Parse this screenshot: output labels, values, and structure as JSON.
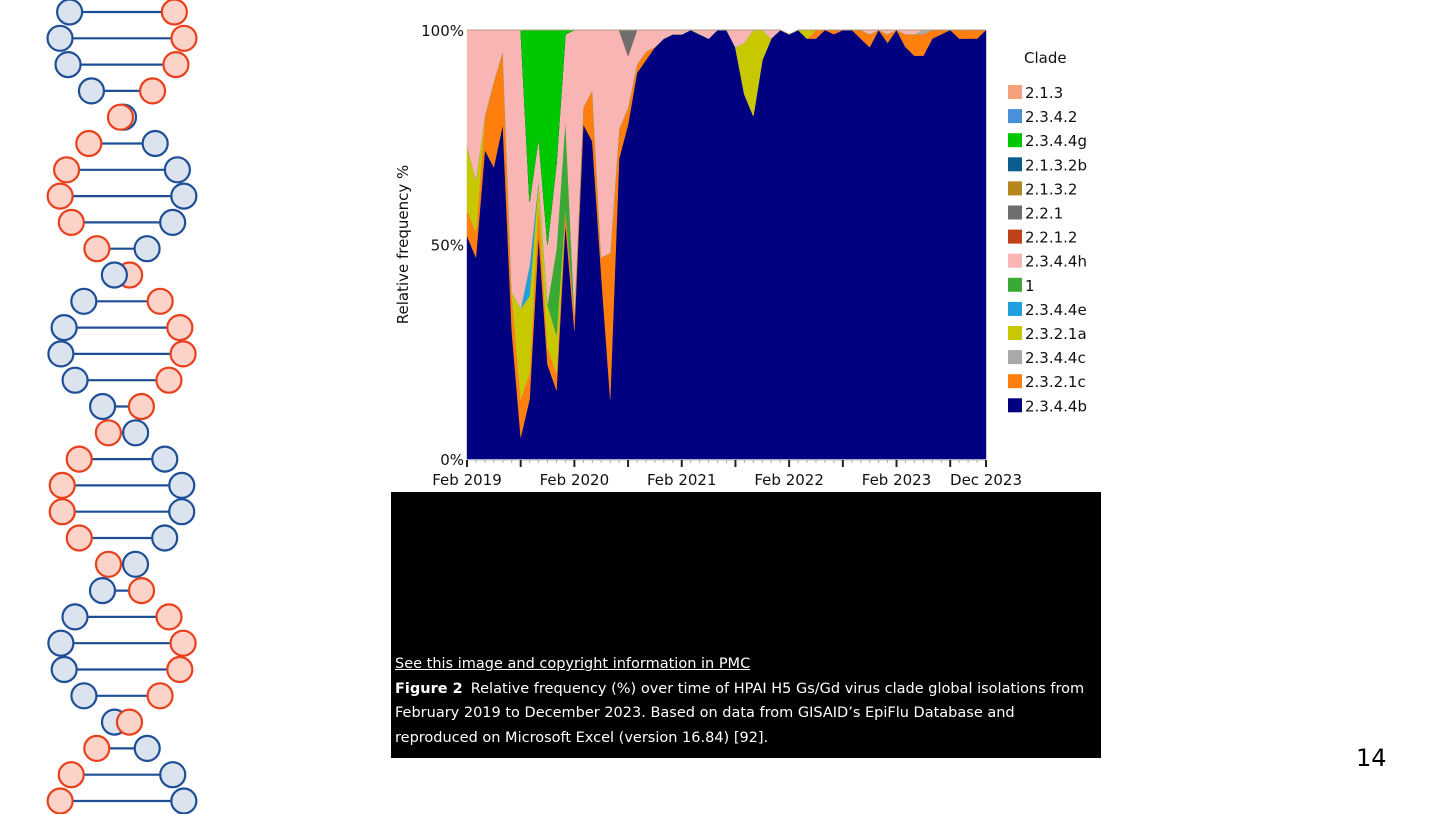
{
  "page_number": "14",
  "caption": {
    "link_text": "See this image and copyright information in PMC",
    "figure_label": "Figure 2",
    "text": "Relative frequency (%) over time of HPAI H5 Gs/Gd virus clade global isolations from February 2019 to December 2023. Based on data from GISAID’s EpiFlu Database and reproduced on Microsoft Excel (version 16.84) [92]."
  },
  "decoration": {
    "icon": "dna-helix-icon",
    "colors": {
      "blue_stroke": "#1e4f96",
      "blue_fill": "#dbe3ee",
      "red_stroke": "#e8401c",
      "red_fill": "#fbd3c8"
    }
  },
  "chart_data": {
    "type": "area",
    "stacked": "percent",
    "title": "",
    "xlabel": "",
    "ylabel": "Relative frequency %",
    "ylim": [
      0,
      100
    ],
    "y_ticks": [
      "0%",
      "50%",
      "100%"
    ],
    "x_ticks": [
      "Feb 2019",
      "Feb 2020",
      "Feb 2021",
      "Feb 2022",
      "Feb 2023",
      "Dec 2023"
    ],
    "x": [
      "2019-02",
      "2019-03",
      "2019-04",
      "2019-05",
      "2019-06",
      "2019-07",
      "2019-08",
      "2019-09",
      "2019-10",
      "2019-11",
      "2019-12",
      "2020-01",
      "2020-02",
      "2020-03",
      "2020-04",
      "2020-05",
      "2020-06",
      "2020-07",
      "2020-08",
      "2020-09",
      "2020-10",
      "2020-11",
      "2020-12",
      "2021-01",
      "2021-02",
      "2021-03",
      "2021-04",
      "2021-05",
      "2021-06",
      "2021-07",
      "2021-08",
      "2021-09",
      "2021-10",
      "2021-11",
      "2021-12",
      "2022-01",
      "2022-02",
      "2022-03",
      "2022-04",
      "2022-05",
      "2022-06",
      "2022-07",
      "2022-08",
      "2022-09",
      "2022-10",
      "2022-11",
      "2022-12",
      "2023-01",
      "2023-02",
      "2023-03",
      "2023-04",
      "2023-05",
      "2023-06",
      "2023-07",
      "2023-08",
      "2023-09",
      "2023-10",
      "2023-11",
      "2023-12"
    ],
    "legend_title": "Clade",
    "legend_position": "right",
    "series": [
      {
        "name": "2.3.4.4b",
        "color": "#000080",
        "values": [
          52,
          47,
          72,
          68,
          78,
          30,
          5,
          14,
          52,
          22,
          16,
          55,
          30,
          78,
          74,
          43,
          14,
          70,
          78,
          90,
          93,
          96,
          98,
          99,
          99,
          100,
          99,
          98,
          100,
          100,
          96,
          85,
          80,
          93,
          98,
          100,
          99,
          100,
          98,
          98,
          100,
          99,
          100,
          100,
          98,
          96,
          100,
          97,
          100,
          96,
          94,
          94,
          98,
          99,
          100,
          98,
          98,
          98,
          100
        ]
      },
      {
        "name": "2.3.2.1c",
        "color": "#ff7f0e",
        "values": [
          6,
          6,
          8,
          20,
          17,
          9,
          9,
          6,
          8,
          4,
          4,
          4,
          4,
          4,
          12,
          4,
          34,
          7,
          4,
          2,
          2,
          0,
          0,
          0,
          0,
          0,
          0,
          0,
          0,
          0,
          0,
          0,
          0,
          0,
          0,
          0,
          0,
          0,
          0,
          3,
          0,
          1,
          0,
          0,
          2,
          3,
          0,
          2,
          0,
          3,
          5,
          5,
          2,
          1,
          0,
          2,
          2,
          2,
          0
        ]
      },
      {
        "name": "2.3.4.4c",
        "color": "#a9a9a9",
        "values": [
          0,
          0,
          0,
          0,
          0,
          0,
          0,
          0,
          0,
          0,
          0,
          0,
          0,
          0,
          0,
          0,
          0,
          0,
          0,
          0,
          0,
          0,
          0,
          0,
          0,
          0,
          0,
          0,
          0,
          0,
          0,
          0,
          0,
          0,
          0,
          0,
          0,
          0,
          0,
          0,
          0,
          0,
          0,
          0,
          0,
          0,
          0,
          0,
          0,
          0,
          0,
          1,
          0,
          0,
          0,
          0,
          0,
          0,
          0
        ]
      },
      {
        "name": "2.3.2.1a",
        "color": "#c8c800",
        "values": [
          15,
          12,
          0,
          0,
          0,
          0,
          21,
          18,
          5,
          10,
          9,
          0,
          0,
          0,
          0,
          0,
          0,
          0,
          0,
          0,
          0,
          0,
          0,
          0,
          0,
          0,
          0,
          0,
          0,
          0,
          0,
          12,
          20,
          7,
          0,
          0,
          0,
          0,
          2,
          0,
          0,
          0,
          0,
          0,
          0,
          0,
          0,
          0,
          0,
          0,
          0,
          0,
          0,
          0,
          0,
          0,
          0,
          0,
          0
        ]
      },
      {
        "name": "2.3.4.4e",
        "color": "#1f9fdf",
        "values": [
          0,
          0,
          0,
          0,
          0,
          0,
          0,
          7,
          0,
          0,
          0,
          0,
          0,
          0,
          0,
          0,
          0,
          0,
          0,
          0,
          0,
          0,
          0,
          0,
          0,
          0,
          0,
          0,
          0,
          0,
          0,
          0,
          0,
          0,
          0,
          0,
          0,
          0,
          0,
          0,
          0,
          0,
          0,
          0,
          0,
          0,
          0,
          0,
          0,
          0,
          0,
          0,
          0,
          0,
          0,
          0,
          0,
          0,
          0
        ]
      },
      {
        "name": "1",
        "color": "#3aaa35",
        "values": [
          0,
          0,
          0,
          0,
          0,
          0,
          0,
          0,
          0,
          0,
          20,
          20,
          0,
          0,
          0,
          0,
          0,
          0,
          0,
          0,
          0,
          0,
          0,
          0,
          0,
          0,
          0,
          0,
          0,
          0,
          0,
          0,
          0,
          0,
          0,
          0,
          0,
          0,
          0,
          0,
          0,
          0,
          0,
          0,
          0,
          0,
          0,
          0,
          0,
          0,
          0,
          0,
          0,
          0,
          0,
          0,
          0,
          0,
          0
        ]
      },
      {
        "name": "2.3.4.4h",
        "color": "#f9b4b4",
        "values": [
          27,
          35,
          20,
          12,
          5,
          61,
          65,
          15,
          10,
          14,
          20,
          20,
          66,
          18,
          14,
          53,
          52,
          23,
          12,
          8,
          5,
          4,
          2,
          1,
          1,
          0,
          1,
          2,
          0,
          0,
          4,
          3,
          0,
          0,
          2,
          0,
          0,
          0,
          0,
          0,
          0,
          0,
          0,
          0,
          0,
          1,
          0,
          1,
          0,
          1,
          1,
          0,
          0,
          0,
          0,
          0,
          0,
          0,
          0
        ]
      },
      {
        "name": "2.2.1.2",
        "color": "#c0401a",
        "values": [
          0,
          0,
          0,
          0,
          0,
          0,
          0,
          0,
          0,
          0,
          0,
          0,
          0,
          0,
          0,
          0,
          0,
          0,
          0,
          0,
          0,
          0,
          0,
          0,
          0,
          0,
          0,
          0,
          0,
          0,
          0,
          0,
          0,
          0,
          0,
          0,
          0,
          0,
          0,
          0,
          0,
          0,
          0,
          0,
          0,
          0,
          0,
          0,
          0,
          0,
          0,
          0,
          0,
          0,
          0,
          0,
          0,
          0,
          0
        ]
      },
      {
        "name": "2.2.1",
        "color": "#6e6e6e",
        "values": [
          0,
          0,
          0,
          0,
          0,
          0,
          0,
          0,
          0,
          0,
          0,
          0,
          0,
          0,
          0,
          0,
          0,
          0,
          6,
          0,
          0,
          0,
          0,
          0,
          0,
          0,
          0,
          0,
          0,
          0,
          0,
          0,
          0,
          0,
          0,
          0,
          0,
          0,
          0,
          0,
          0,
          0,
          0,
          0,
          0,
          0,
          0,
          0,
          0,
          0,
          0,
          0,
          0,
          0,
          0,
          0,
          0,
          0,
          0
        ]
      },
      {
        "name": "2.1.3.2",
        "color": "#b5861e",
        "values": [
          0,
          0,
          0,
          0,
          0,
          0,
          0,
          0,
          0,
          0,
          0,
          0,
          0,
          0,
          0,
          0,
          0,
          0,
          0,
          0,
          0,
          0,
          0,
          0,
          0,
          0,
          0,
          0,
          0,
          0,
          0,
          0,
          0,
          0,
          0,
          0,
          0,
          0,
          0,
          0,
          0,
          0,
          0,
          0,
          0,
          0,
          0,
          0,
          0,
          0,
          0,
          0,
          0,
          0,
          0,
          0,
          0,
          0,
          0
        ]
      },
      {
        "name": "2.1.3.2b",
        "color": "#0b5d8f",
        "values": [
          0,
          0,
          0,
          0,
          0,
          0,
          0,
          0,
          0,
          0,
          0,
          0,
          0,
          0,
          0,
          0,
          0,
          0,
          0,
          0,
          0,
          0,
          0,
          0,
          0,
          0,
          0,
          0,
          0,
          0,
          0,
          0,
          0,
          0,
          0,
          0,
          0,
          0,
          0,
          0,
          0,
          0,
          0,
          0,
          0,
          0,
          0,
          0,
          0,
          0,
          0,
          0,
          0,
          0,
          0,
          0,
          0,
          0,
          0
        ]
      },
      {
        "name": "2.3.4.4g",
        "color": "#00c800",
        "values": [
          0,
          0,
          0,
          0,
          0,
          0,
          0,
          40,
          25,
          50,
          31,
          1,
          0,
          0,
          0,
          4,
          0,
          0,
          0,
          0,
          0,
          0,
          0,
          0,
          0,
          0,
          0,
          0,
          0,
          0,
          0,
          0,
          0,
          0,
          0,
          0,
          0,
          0,
          0,
          0,
          0,
          0,
          0,
          0,
          0,
          0,
          0,
          0,
          0,
          0,
          0,
          0,
          0,
          0,
          0,
          0,
          0,
          0,
          0
        ]
      },
      {
        "name": "2.3.4.2",
        "color": "#4a90d9",
        "values": [
          0,
          0,
          0,
          0,
          0,
          0,
          0,
          0,
          0,
          0,
          0,
          0,
          0,
          0,
          0,
          0,
          0,
          0,
          0,
          0,
          0,
          0,
          0,
          0,
          0,
          0,
          0,
          0,
          0,
          0,
          0,
          0,
          0,
          0,
          0,
          0,
          0,
          0,
          0,
          0,
          0,
          0,
          0,
          0,
          0,
          0,
          0,
          0,
          0,
          0,
          0,
          0,
          0,
          0,
          0,
          0,
          0,
          0,
          0
        ]
      },
      {
        "name": "2.1.3",
        "color": "#f4a07a",
        "values": [
          0,
          0,
          0,
          0,
          0,
          0,
          0,
          0,
          0,
          0,
          0,
          0,
          0,
          0,
          0,
          0,
          0,
          0,
          0,
          0,
          0,
          0,
          0,
          0,
          0,
          0,
          0,
          0,
          0,
          0,
          0,
          0,
          0,
          0,
          0,
          0,
          0,
          0,
          0,
          0,
          0,
          0,
          0,
          0,
          0,
          0,
          0,
          0,
          0,
          0,
          0,
          0,
          0,
          0,
          0,
          0,
          0,
          0,
          0
        ]
      }
    ],
    "legend_order": [
      "2.1.3",
      "2.3.4.2",
      "2.3.4.4g",
      "2.1.3.2b",
      "2.1.3.2",
      "2.2.1",
      "2.2.1.2",
      "2.3.4.4h",
      "1",
      "2.3.4.4e",
      "2.3.2.1a",
      "2.3.4.4c",
      "2.3.2.1c",
      "2.3.4.4b"
    ]
  }
}
